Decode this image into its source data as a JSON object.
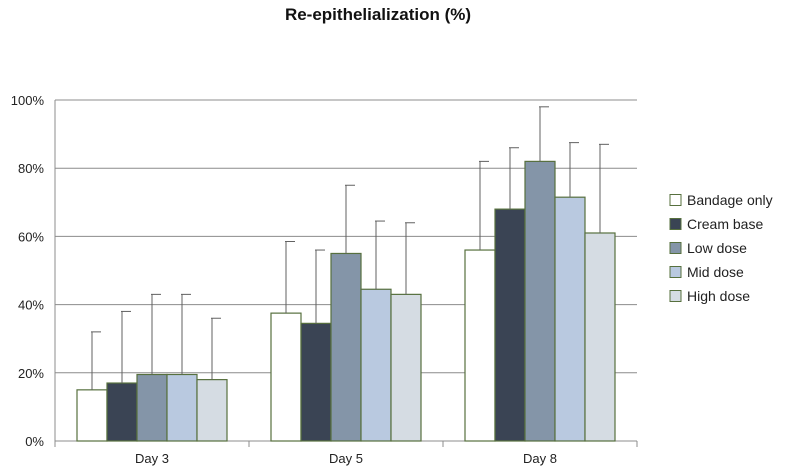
{
  "chart_data": {
    "type": "bar",
    "title": "Re-epithelialization (%)",
    "xlabel": "",
    "ylabel": "",
    "ylim": [
      0,
      100
    ],
    "yticks": [
      "0%",
      "20%",
      "40%",
      "60%",
      "80%",
      "100%"
    ],
    "ytick_values": [
      0,
      20,
      40,
      60,
      80,
      100
    ],
    "grid": true,
    "legend_position": "right",
    "categories": [
      "Day 3",
      "Day 5",
      "Day 8"
    ],
    "series": [
      {
        "name": "Bandage only",
        "color": "#ffffff",
        "values": [
          15,
          37.5,
          56
        ],
        "errors": [
          17,
          21,
          26
        ]
      },
      {
        "name": "Cream base",
        "color": "#3a4454",
        "values": [
          17,
          34.5,
          68
        ],
        "errors": [
          21,
          21.5,
          18
        ]
      },
      {
        "name": "Low dose",
        "color": "#8495a8",
        "values": [
          19.5,
          55,
          82
        ],
        "errors": [
          23.5,
          20,
          16
        ]
      },
      {
        "name": "Mid dose",
        "color": "#b9c9e0",
        "values": [
          19.5,
          44.5,
          71.5
        ],
        "errors": [
          23.5,
          20,
          16
        ]
      },
      {
        "name": "High dose",
        "color": "#d5dce3",
        "values": [
          18,
          43,
          61
        ],
        "errors": [
          18,
          21,
          26
        ]
      }
    ]
  }
}
